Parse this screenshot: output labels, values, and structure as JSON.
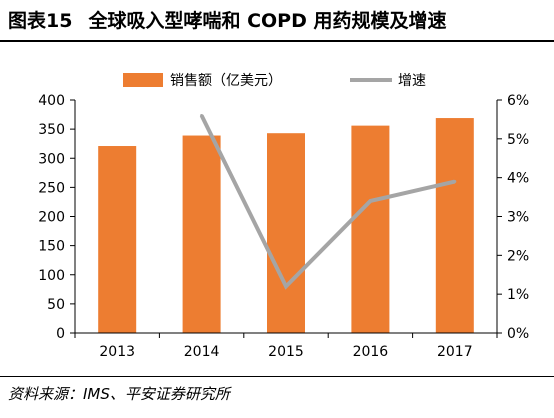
{
  "figure": {
    "label": "图表15",
    "title": "全球吸入型哮喘和 COPD 用药规模及增速",
    "source": "资料来源：IMS、平安证券研究所"
  },
  "colors": {
    "bar": "#ED7D31",
    "line": "#A5A5A5"
  },
  "chart_data": {
    "type": "bar",
    "categories": [
      "2013",
      "2014",
      "2015",
      "2016",
      "2017"
    ],
    "series": [
      {
        "name": "销售额（亿美元）",
        "type": "bar",
        "axis": "left",
        "values": [
          321,
          339,
          343,
          356,
          369
        ]
      },
      {
        "name": "增速",
        "type": "line",
        "axis": "right",
        "values": [
          null,
          5.6,
          1.2,
          3.4,
          3.9
        ]
      }
    ],
    "ylim": [
      0,
      400
    ],
    "y_ticks": [
      "0",
      "50",
      "100",
      "150",
      "200",
      "250",
      "300",
      "350",
      "400"
    ],
    "y2lim": [
      0,
      6
    ],
    "y2_ticks": [
      "0%",
      "1%",
      "2%",
      "3%",
      "4%",
      "5%",
      "6%"
    ],
    "legend": "top",
    "grid": false
  }
}
